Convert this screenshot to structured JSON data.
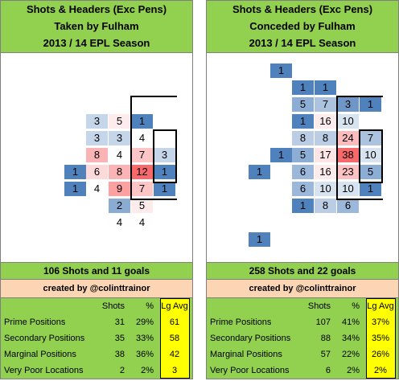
{
  "colors": {
    "header_bg": "#92d050",
    "credit_bg": "#fcd5b4",
    "avg_bg": "#ffff00",
    "heat_low": "#4f81bd",
    "heat_high": "#f8696b"
  },
  "chart_data": [
    {
      "type": "heatmap",
      "title": [
        "Shots & Headers (Exc Pens)",
        "Taken by Fulham",
        "2013 / 14 EPL Season"
      ],
      "cells": [
        {
          "row": 3,
          "col": 2,
          "value": 3
        },
        {
          "row": 3,
          "col": 3,
          "value": 5
        },
        {
          "row": 3,
          "col": 4,
          "value": 1
        },
        {
          "row": 4,
          "col": 2,
          "value": 3
        },
        {
          "row": 4,
          "col": 3,
          "value": 3
        },
        {
          "row": 4,
          "col": 4,
          "value": 4
        },
        {
          "row": 5,
          "col": 2,
          "value": 8
        },
        {
          "row": 5,
          "col": 3,
          "value": 4
        },
        {
          "row": 5,
          "col": 4,
          "value": 7
        },
        {
          "row": 5,
          "col": 5,
          "value": 3
        },
        {
          "row": 6,
          "col": 1,
          "value": 1
        },
        {
          "row": 6,
          "col": 2,
          "value": 6
        },
        {
          "row": 6,
          "col": 3,
          "value": 8
        },
        {
          "row": 6,
          "col": 4,
          "value": 12
        },
        {
          "row": 6,
          "col": 5,
          "value": 1
        },
        {
          "row": 7,
          "col": 1,
          "value": 1
        },
        {
          "row": 7,
          "col": 2,
          "value": 4
        },
        {
          "row": 7,
          "col": 3,
          "value": 9
        },
        {
          "row": 7,
          "col": 4,
          "value": 7
        },
        {
          "row": 7,
          "col": 5,
          "value": 1
        },
        {
          "row": 8,
          "col": 3,
          "value": 2
        },
        {
          "row": 8,
          "col": 4,
          "value": 5
        },
        {
          "row": 9,
          "col": 3,
          "value": 4
        },
        {
          "row": 9,
          "col": 4,
          "value": 4
        }
      ],
      "summary": "106 Shots and 11 goals",
      "credit": "created by @colinttrainor",
      "table": {
        "headers": [
          "Shots",
          "%",
          "Lg Avg"
        ],
        "rows": [
          {
            "label": "Prime Positions",
            "shots": "31",
            "pct": "29%",
            "avg": "61"
          },
          {
            "label": "Secondary Positions",
            "shots": "35",
            "pct": "33%",
            "avg": "58"
          },
          {
            "label": "Marginal Positions",
            "shots": "38",
            "pct": "36%",
            "avg": "42"
          },
          {
            "label": "Very Poor Locations",
            "shots": "2",
            "pct": "2%",
            "avg": "3"
          }
        ]
      }
    },
    {
      "type": "heatmap",
      "title": [
        "Shots & Headers (Exc Pens)",
        "Conceded by Fulham",
        "2013 / 14 EPL Season"
      ],
      "cells": [
        {
          "row": 0,
          "col": 1,
          "value": 1
        },
        {
          "row": 1,
          "col": 2,
          "value": 1
        },
        {
          "row": 1,
          "col": 3,
          "value": 1
        },
        {
          "row": 2,
          "col": 2,
          "value": 5
        },
        {
          "row": 2,
          "col": 3,
          "value": 7
        },
        {
          "row": 2,
          "col": 4,
          "value": 3
        },
        {
          "row": 2,
          "col": 5,
          "value": 1
        },
        {
          "row": 3,
          "col": 2,
          "value": 1
        },
        {
          "row": 3,
          "col": 3,
          "value": 16
        },
        {
          "row": 3,
          "col": 4,
          "value": 10
        },
        {
          "row": 4,
          "col": 2,
          "value": 8
        },
        {
          "row": 4,
          "col": 3,
          "value": 8
        },
        {
          "row": 4,
          "col": 4,
          "value": 24
        },
        {
          "row": 4,
          "col": 5,
          "value": 7
        },
        {
          "row": 5,
          "col": 1,
          "value": 1
        },
        {
          "row": 5,
          "col": 2,
          "value": 5
        },
        {
          "row": 5,
          "col": 3,
          "value": 17
        },
        {
          "row": 5,
          "col": 4,
          "value": 38
        },
        {
          "row": 5,
          "col": 5,
          "value": 10
        },
        {
          "row": 6,
          "col": 0,
          "value": 1
        },
        {
          "row": 6,
          "col": 2,
          "value": 6
        },
        {
          "row": 6,
          "col": 3,
          "value": 16
        },
        {
          "row": 6,
          "col": 4,
          "value": 23
        },
        {
          "row": 6,
          "col": 5,
          "value": 5
        },
        {
          "row": 7,
          "col": 2,
          "value": 6
        },
        {
          "row": 7,
          "col": 3,
          "value": 10
        },
        {
          "row": 7,
          "col": 4,
          "value": 10
        },
        {
          "row": 7,
          "col": 5,
          "value": 1
        },
        {
          "row": 8,
          "col": 2,
          "value": 1
        },
        {
          "row": 8,
          "col": 3,
          "value": 8
        },
        {
          "row": 8,
          "col": 4,
          "value": 6
        },
        {
          "row": 10,
          "col": 0,
          "value": 1
        }
      ],
      "summary": "258 Shots and 22 goals",
      "credit": "created by @colinttrainor",
      "table": {
        "headers": [
          "Shots",
          "%",
          "Lg Avg"
        ],
        "rows": [
          {
            "label": "Prime Positions",
            "shots": "107",
            "pct": "41%",
            "avg": "37%"
          },
          {
            "label": "Secondary Positions",
            "shots": "88",
            "pct": "34%",
            "avg": "35%"
          },
          {
            "label": "Marginal Positions",
            "shots": "57",
            "pct": "22%",
            "avg": "26%"
          },
          {
            "label": "Very Poor Locations",
            "shots": "6",
            "pct": "2%",
            "avg": "2%"
          }
        ]
      }
    }
  ]
}
